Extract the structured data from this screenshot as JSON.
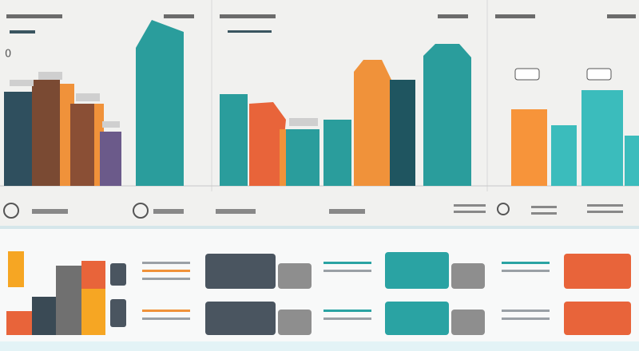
{
  "labels": [
    "0"
  ]
}
